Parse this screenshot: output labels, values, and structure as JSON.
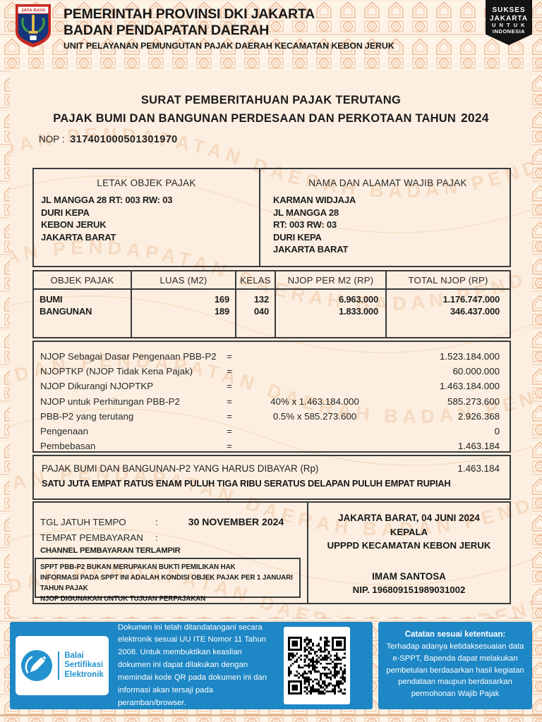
{
  "header": {
    "line1": "PEMERINTAH PROVINSI DKI JAKARTA",
    "line2": "BADAN PENDAPATAN DAERAH",
    "line3": "UNIT PELAYANAN PEMUNGUTAN PAJAK DAERAH KECAMATAN KEBON JERUK",
    "logo_caption": "JAYA RAYA",
    "badge_lines": [
      "SUKSES",
      "JAKARTA",
      "U N T U K",
      "INDONESIA"
    ]
  },
  "title": {
    "line1": "SURAT PEMBERITAHUAN PAJAK TERUTANG",
    "line2": "PAJAK BUMI DAN BANGUNAN PERDESAAN DAN PERKOTAAN TAHUN",
    "year": "2024",
    "nop_label": "NOP :",
    "nop_value": "317401000501301970"
  },
  "object_section": {
    "left_title": "LETAK OBJEK PAJAK",
    "left_lines": [
      "JL MANGGA 28 RT: 003 RW: 03",
      "DURI KEPA",
      "KEBON JERUK",
      "JAKARTA BARAT"
    ],
    "right_title": "NAMA DAN ALAMAT WAJIB PAJAK",
    "right_lines": [
      "KARMAN WIDJAJA",
      "JL MANGGA 28",
      "RT: 003 RW: 03",
      "DURI KEPA",
      "JAKARTA BARAT"
    ]
  },
  "table": {
    "headers": [
      "OBJEK PAJAK",
      "LUAS (M2)",
      "KELAS",
      "NJOP PER M2 (RP)",
      "TOTAL NJOP (RP)"
    ],
    "rows": [
      {
        "objek": "BUMI",
        "luas": "169",
        "kelas": "132",
        "njop_per_m2": "6.963.000",
        "total_njop": "1.176.747.000"
      },
      {
        "objek": "BANGUNAN",
        "luas": "189",
        "kelas": "040",
        "njop_per_m2": "1.833.000",
        "total_njop": "346.437.000"
      }
    ]
  },
  "calculation": {
    "rows": [
      {
        "label": "NJOP Sebagai Dasar Pengenaan PBB-P2",
        "eq": "=",
        "formula": "",
        "value": "1.523.184.000"
      },
      {
        "label": "NJOPTKP (NJOP Tidak Kena Pajak)",
        "eq": "=",
        "formula": "",
        "value": "60.000.000"
      },
      {
        "label": "NJOP Dikurangi NJOPTKP",
        "eq": "=",
        "formula": "",
        "value": "1.463.184.000"
      },
      {
        "label": "NJOP untuk Perhitungan PBB-P2",
        "eq": "=",
        "formula": "40% x 1.463.184.000",
        "value": "585.273.600"
      },
      {
        "label": "PBB-P2 yang terutang",
        "eq": "=",
        "formula": "0.5% x 585.273.600",
        "value": "2.926.368"
      },
      {
        "label": "Pengenaan",
        "eq": "=",
        "formula": "",
        "value": "0"
      },
      {
        "label": "Pembebasan",
        "eq": "=",
        "formula": "",
        "value": "1.463.184"
      }
    ]
  },
  "payment": {
    "label": "PAJAK BUMI DAN BANGUNAN-P2 YANG HARUS DIBAYAR (Rp)",
    "value": "1.463.184",
    "terbilang": "SATU JUTA EMPAT RATUS ENAM PULUH TIGA RIBU SERATUS DELAPAN PULUH EMPAT RUPIAH"
  },
  "footer_info": {
    "due_label": "TGL JATUH TEMPO",
    "due_colon": ":",
    "due_value": "30 NOVEMBER 2024",
    "place_label": "TEMPAT PEMBAYARAN",
    "place_colon": ":",
    "place_value": "CHANNEL PEMBAYARAN TERLAMPIR",
    "notes": [
      "SPPT PBB-P2 BUKAN MERUPAKAN BUKTI PEMILIKAN HAK",
      "INFORMASI PADA SPPT INI ADALAH KONDISI OBJEK PAJAK PER 1 JANUARI TAHUN PAJAK",
      "NJOP DIGUNAKAN UNTUK TUJUAN PERPAJAKAN"
    ],
    "sign_place_date": "JAKARTA BARAT, 04 JUNI 2024",
    "sign_title1": "KEPALA",
    "sign_title2": "UPPPD KECAMATAN KEBON JERUK",
    "sign_name": "IMAM SANTOSA",
    "sign_nip": "NIP. 196809151989031002"
  },
  "esign": {
    "logo_line1": "Balai",
    "logo_line2": "Sertifikasi",
    "logo_line3": "Elektronik",
    "paragraph": "Dokumen ini telah ditandatangani secara elektronik sesuai UU ITE Nomor 11 Tahun 2008. Untuk membuktikan keaslian dokumen ini dapat dilakukan dengan memindai kode QR pada dokumen ini dan informasi akan tersaji pada peramban/browser."
  },
  "catatan": {
    "title": "Catatan sesuai ketentuan:",
    "body": "Terhadap adanya ketidaksesuaian data e-SPPT, Bapenda dapat melakukan pembetulan berdasarkan hasil kegiatan pendataan maupun berdasarkan permohonan Wajib Pajak"
  },
  "watermark": {
    "text": "BADAN PENDAPATAN DAERAH",
    "repeat": "BADAN PENDAPATAN DAERAH      BADAN PENDAPATAN DAERAH      BADAN PENDAPATAN DAERAH      BADAN PENDAPATAN DAERAH"
  },
  "colors": {
    "accent_blue": "#1e87c5",
    "pattern_orange": "#edb28a",
    "panel_cream": "#fcefe1",
    "badge_black": "#141414"
  }
}
